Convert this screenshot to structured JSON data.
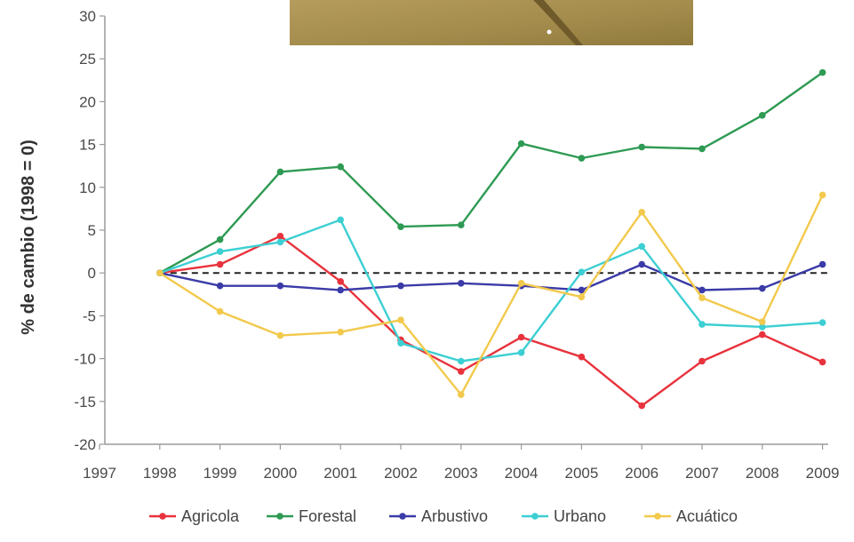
{
  "chart_data": {
    "type": "line",
    "title": "",
    "xlabel": "",
    "ylabel": "% de cambio (1998 = 0)",
    "x": [
      "1997",
      "1998",
      "1999",
      "2000",
      "2001",
      "2002",
      "2003",
      "2004",
      "2005",
      "2006",
      "2007",
      "2008",
      "2009"
    ],
    "yticks": [
      "30",
      "25",
      "20",
      "15",
      "10",
      "5",
      "0",
      "-5",
      "-10",
      "-15",
      "-20"
    ],
    "ylim": [
      -20,
      30
    ],
    "zero_line": "dashed",
    "grid": false,
    "legend_position": "bottom",
    "series": [
      {
        "name": "Agricola",
        "color": "#e8323c",
        "x": [
          "1998",
          "1999",
          "2000",
          "2001",
          "2002",
          "2003",
          "2004",
          "2005",
          "2006",
          "2007",
          "2008",
          "2009"
        ],
        "values": [
          0,
          1,
          4.3,
          -1,
          -7.8,
          -11.5,
          -7.5,
          -9.8,
          -15.5,
          -10.3,
          -7.2,
          -10.4
        ]
      },
      {
        "name": "Forestal",
        "color": "#2e9a53",
        "x": [
          "1998",
          "1999",
          "2000",
          "2001",
          "2002",
          "2003",
          "2004",
          "2005",
          "2006",
          "2007",
          "2008",
          "2009"
        ],
        "values": [
          0,
          3.9,
          11.8,
          12.4,
          5.4,
          5.6,
          15.1,
          13.4,
          14.7,
          14.5,
          18.4,
          23.4
        ]
      },
      {
        "name": "Arbustivo",
        "color": "#3b3ba8",
        "x": [
          "1998",
          "1999",
          "2000",
          "2001",
          "2002",
          "2003",
          "2004",
          "2005",
          "2006",
          "2007",
          "2008",
          "2009"
        ],
        "values": [
          0,
          -1.5,
          -1.5,
          -2,
          -1.5,
          -1.2,
          -1.5,
          -2,
          1,
          -2,
          -1.8,
          1
        ]
      },
      {
        "name": "Urbano",
        "color": "#3ccfd3",
        "x": [
          "1998",
          "1999",
          "2000",
          "2001",
          "2002",
          "2003",
          "2004",
          "2005",
          "2006",
          "2007",
          "2008",
          "2009"
        ],
        "values": [
          0,
          2.5,
          3.6,
          6.2,
          -8.2,
          -10.3,
          -9.3,
          0.1,
          3.1,
          -6,
          -6.3,
          -5.8
        ]
      },
      {
        "name": "Acuático",
        "color": "#f2c94c",
        "x": [
          "1998",
          "1999",
          "2000",
          "2001",
          "2002",
          "2003",
          "2004",
          "2005",
          "2006",
          "2007",
          "2008",
          "2009"
        ],
        "values": [
          0,
          -4.5,
          -7.3,
          -6.9,
          -5.5,
          -14.2,
          -1.2,
          -2.8,
          7.1,
          -2.9,
          -5.7,
          9.1
        ]
      }
    ],
    "legend": [
      "Agricola",
      "Forestal",
      "Arbustivo",
      "Urbano",
      "Acuático"
    ]
  },
  "photo_colors": [
    "#b9a163",
    "#8d7b3e",
    "#a89158"
  ]
}
